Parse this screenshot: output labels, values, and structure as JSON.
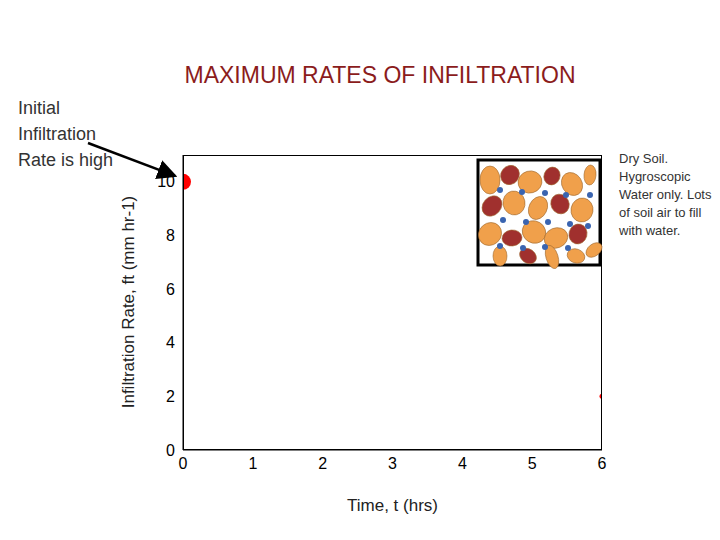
{
  "chart_data": {
    "type": "line",
    "title": "MAXIMUM RATES OF INFILTRATION",
    "annotations": [
      "Initial Infiltration Rate is high",
      "Dry Soil. Hygroscopic Water only. Lots of soil air to fill with water."
    ],
    "x_label": "Time, t (hrs)",
    "y_label": "Infiltration Rate, ft (mm hr-1)",
    "xlim": [
      0,
      6
    ],
    "xticks": [
      0,
      1,
      2,
      3,
      4,
      5,
      6
    ],
    "ylim": [
      0,
      11
    ],
    "yticks": [
      0,
      2,
      4,
      6,
      8,
      10
    ],
    "series": [
      {
        "type": "line",
        "color": "#4f81bd",
        "x": [
          0,
          0
        ],
        "values": [
          0,
          10
        ]
      },
      {
        "type": "line",
        "color": "#4f81bd",
        "x": [
          6,
          6
        ],
        "values": [
          0,
          2
        ]
      },
      {
        "type": "scatter",
        "color": "#ff0000",
        "marker": "circle",
        "x": [
          0,
          6
        ],
        "values": [
          10,
          2
        ]
      }
    ]
  }
}
